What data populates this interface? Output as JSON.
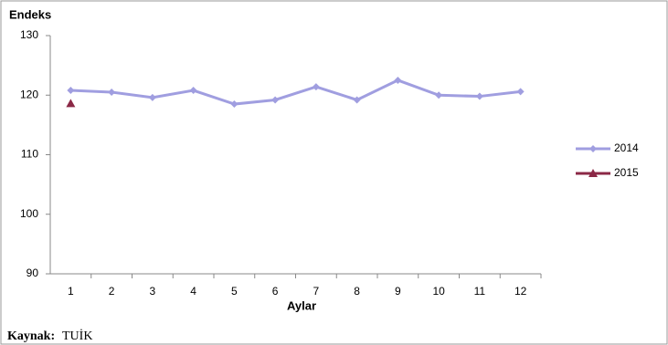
{
  "chart_data": {
    "type": "line",
    "y_label": "Endeks",
    "x_label": "Aylar",
    "categories": [
      "1",
      "2",
      "3",
      "4",
      "5",
      "6",
      "7",
      "8",
      "9",
      "10",
      "11",
      "12"
    ],
    "series": [
      {
        "name": "2014",
        "color": "#a09ee0",
        "marker": "diamond",
        "values": [
          120.8,
          120.5,
          119.6,
          120.8,
          118.5,
          119.2,
          121.4,
          119.2,
          122.5,
          120.0,
          119.8,
          120.6
        ]
      },
      {
        "name": "2015",
        "color": "#8b2846",
        "marker": "triangle",
        "values": [
          118.6,
          null,
          null,
          null,
          null,
          null,
          null,
          null,
          null,
          null,
          null,
          null
        ]
      }
    ],
    "ylim": [
      90,
      130
    ],
    "yticks": [
      90,
      100,
      110,
      120,
      130
    ],
    "grid": false,
    "legend": "right"
  },
  "source_label": "Kaynak:",
  "source": "TUİK"
}
